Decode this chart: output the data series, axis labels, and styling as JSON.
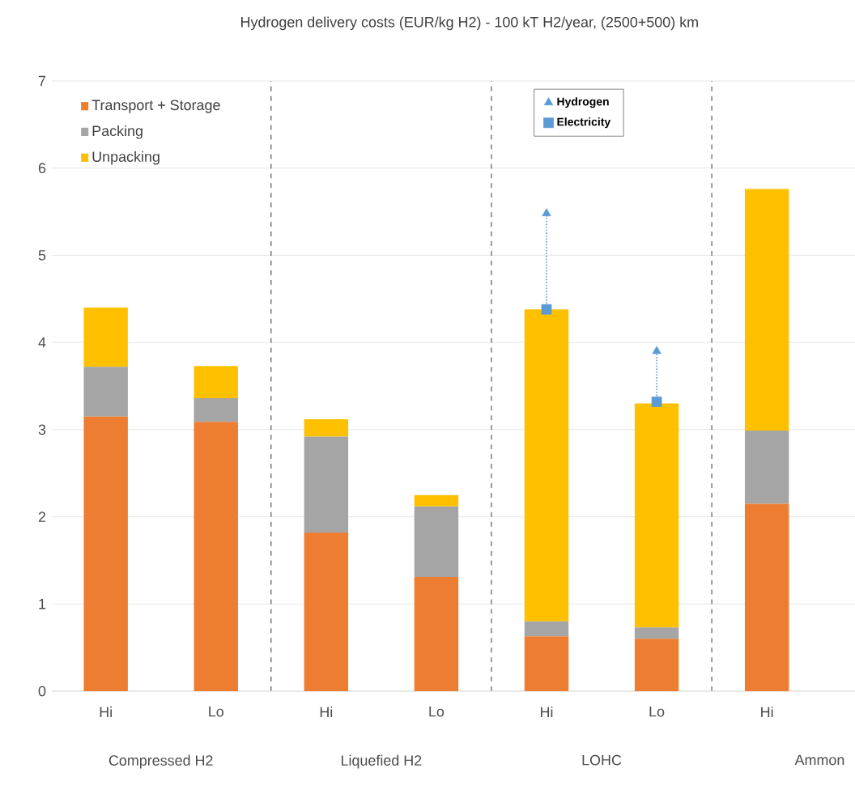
{
  "chart_data": {
    "type": "bar",
    "title": "Hydrogen delivery costs (EUR/kg H2) - 100 kT H2/year, (2500+500) km",
    "categories": [
      "Hi",
      "Lo",
      "Hi",
      "Lo",
      "Hi",
      "Lo",
      "Hi"
    ],
    "stacked": true,
    "series": [
      {
        "name": "Transport + Storage",
        "color": "#ed7d31",
        "values": [
          3.15,
          3.09,
          1.82,
          1.31,
          0.63,
          0.6,
          2.15
        ]
      },
      {
        "name": "Packing",
        "color": "#a5a5a5",
        "values": [
          0.57,
          0.27,
          1.1,
          0.81,
          0.17,
          0.13,
          0.84
        ]
      },
      {
        "name": "Unpacking",
        "color": "#ffc000",
        "values": [
          0.68,
          0.37,
          0.2,
          0.13,
          3.58,
          2.57,
          2.77
        ]
      },
      {
        "name": "Hydrogen",
        "type": "scatter",
        "marker": "triangle",
        "color": "#5b9bd5",
        "values": [
          null,
          null,
          null,
          null,
          5.48,
          3.9,
          null
        ]
      },
      {
        "name": "Electricity",
        "type": "scatter",
        "marker": "square",
        "color": "#5b9bd5",
        "values": [
          null,
          null,
          null,
          null,
          4.38,
          3.32,
          null
        ]
      }
    ],
    "ylim": [
      0,
      7
    ],
    "yticks": [
      0,
      1,
      2,
      3,
      4,
      5,
      6,
      7
    ],
    "grid": "y",
    "legend": "top left",
    "annotations": [
      "Compressed H2",
      "Liquefied H2",
      "LOHC",
      "Ammon"
    ]
  }
}
